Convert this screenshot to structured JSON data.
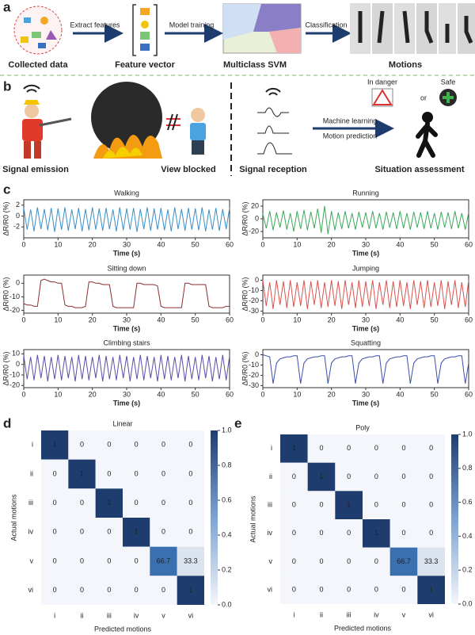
{
  "panel_a": {
    "label": "a",
    "captions": [
      "Collected data",
      "Feature vector",
      "Multiclass SVM",
      "Motions"
    ],
    "arrows": [
      "Extract features",
      "Model training",
      "Classification"
    ]
  },
  "panel_b": {
    "label": "b",
    "captions": [
      "Signal emission",
      "View blocked",
      "Signal reception",
      "Situation assessment"
    ],
    "arrow_top": "Machine learning",
    "arrow_bottom": "Motion prediction",
    "states": [
      "In danger",
      "or",
      "Safe"
    ]
  },
  "panel_labels": [
    "c",
    "d",
    "e"
  ],
  "chart_data": [
    {
      "type": "line",
      "title": "Walking",
      "xlabel": "Time (s)",
      "ylabel": "ΔR/R0 (%)",
      "color": "#3a8fc8",
      "xlim": [
        0,
        60
      ],
      "xticks": [
        0,
        10,
        20,
        30,
        40,
        50,
        60
      ],
      "ylim": [
        -4,
        3
      ],
      "yticks": [
        -2,
        0,
        2
      ],
      "x": [
        0,
        1,
        2,
        3,
        4,
        5,
        6,
        7,
        8,
        9,
        10,
        11,
        12,
        13,
        14,
        15,
        16,
        17,
        18,
        19,
        20,
        21,
        22,
        23,
        24,
        25,
        26,
        27,
        28,
        29,
        30,
        31,
        32,
        33,
        34,
        35,
        36,
        37,
        38,
        39,
        40,
        41,
        42,
        43,
        44,
        45,
        46,
        47,
        48,
        49,
        50,
        51,
        52,
        53,
        54,
        55,
        56,
        57,
        58,
        59,
        60
      ],
      "values": [
        1.5,
        -2.5,
        1.2,
        -2.8,
        1.6,
        -2.4,
        1.3,
        -2.6,
        1.5,
        -2.9,
        1.4,
        -2.5,
        1.6,
        -2.7,
        1.2,
        -2.4,
        1.5,
        -2.8,
        1.3,
        -2.6,
        1.6,
        -2.5,
        1.4,
        -2.7,
        1.5,
        -2.4,
        1.2,
        -2.8,
        1.6,
        -2.6,
        1.4,
        -2.5,
        1.5,
        -2.9,
        1.3,
        -2.4,
        1.6,
        -2.7,
        1.4,
        -2.5,
        1.5,
        -2.6,
        1.2,
        -2.8,
        1.6,
        -2.4,
        1.3,
        -2.7,
        1.5,
        -2.5,
        1.4,
        -2.6,
        1.6,
        -2.8,
        1.2,
        -2.5,
        1.5,
        -2.7,
        1.3,
        -2.4,
        1.5
      ]
    },
    {
      "type": "line",
      "title": "Running",
      "xlabel": "Time (s)",
      "ylabel": "ΔR/R0 (%)",
      "color": "#3aa85a",
      "xlim": [
        0,
        60
      ],
      "xticks": [
        0,
        10,
        20,
        30,
        40,
        50,
        60
      ],
      "ylim": [
        -30,
        30
      ],
      "yticks": [
        -20,
        0,
        20
      ],
      "x": [
        0,
        1,
        2,
        3,
        4,
        5,
        6,
        7,
        8,
        9,
        10,
        11,
        12,
        13,
        14,
        15,
        16,
        17,
        18,
        19,
        20,
        21,
        22,
        23,
        24,
        25,
        26,
        27,
        28,
        29,
        30,
        31,
        32,
        33,
        34,
        35,
        36,
        37,
        38,
        39,
        40,
        41,
        42,
        43,
        44,
        45,
        46,
        47,
        48,
        49,
        50,
        51,
        52,
        53,
        54,
        55,
        56,
        57,
        58,
        59,
        60
      ],
      "values": [
        8,
        -15,
        12,
        -18,
        10,
        -14,
        13,
        -17,
        9,
        -20,
        12,
        -16,
        14,
        -18,
        11,
        -15,
        16,
        -22,
        20,
        -24,
        12,
        -18,
        10,
        -16,
        12,
        -15,
        9,
        -17,
        11,
        -14,
        10,
        -16,
        12,
        -15,
        9,
        -17,
        11,
        -14,
        10,
        -16,
        12,
        -15,
        9,
        -17,
        11,
        -14,
        10,
        -16,
        12,
        -15,
        9,
        -17,
        11,
        -14,
        10,
        -16,
        12,
        -15,
        9,
        -17,
        10
      ]
    },
    {
      "type": "line",
      "title": "Sitting down",
      "xlabel": "Time (s)",
      "ylabel": "ΔR/R0 (%)",
      "color": "#8b2e2e",
      "xlim": [
        0,
        60
      ],
      "xticks": [
        0,
        10,
        20,
        30,
        40,
        50,
        60
      ],
      "ylim": [
        -22,
        6
      ],
      "yticks": [
        -20,
        -10,
        0
      ],
      "x": [
        0,
        1,
        2,
        3,
        4,
        5,
        6,
        7,
        8,
        9,
        10,
        11,
        12,
        13,
        14,
        15,
        16,
        17,
        18,
        19,
        20,
        21,
        22,
        23,
        24,
        25,
        26,
        27,
        28,
        29,
        30,
        31,
        32,
        33,
        34,
        35,
        36,
        37,
        38,
        39,
        40,
        41,
        42,
        43,
        44,
        45,
        46,
        47,
        48,
        49,
        50,
        51,
        52,
        53,
        54,
        55,
        56,
        57,
        58,
        59,
        60
      ],
      "values": [
        -15,
        -16,
        -16,
        -17,
        -17,
        2,
        3,
        2,
        1,
        1,
        0,
        0,
        -16,
        -17,
        -17,
        -18,
        -18,
        -18,
        -17,
        1,
        1,
        0,
        0,
        -1,
        -1,
        -1,
        -17,
        -18,
        -18,
        -18,
        -18,
        -18,
        -18,
        0,
        0,
        -1,
        -1,
        -1,
        -1,
        -2,
        -17,
        -18,
        -18,
        -18,
        -18,
        -18,
        -18,
        0,
        0,
        -1,
        -1,
        -1,
        -1,
        -1,
        -17,
        -18,
        -18,
        -18,
        -18,
        -17,
        -17
      ]
    },
    {
      "type": "line",
      "title": "Jumping",
      "xlabel": "Time (s)",
      "ylabel": "ΔR/R0 (%)",
      "color": "#d9534f",
      "xlim": [
        0,
        60
      ],
      "xticks": [
        0,
        10,
        20,
        30,
        40,
        50,
        60
      ],
      "ylim": [
        -32,
        5
      ],
      "yticks": [
        -30,
        -20,
        -10,
        0
      ],
      "x": [
        0,
        1,
        2,
        3,
        4,
        5,
        6,
        7,
        8,
        9,
        10,
        11,
        12,
        13,
        14,
        15,
        16,
        17,
        18,
        19,
        20,
        21,
        22,
        23,
        24,
        25,
        26,
        27,
        28,
        29,
        30,
        31,
        32,
        33,
        34,
        35,
        36,
        37,
        38,
        39,
        40,
        41,
        42,
        43,
        44,
        45,
        46,
        47,
        48,
        49,
        50,
        51,
        52,
        53,
        54,
        55,
        56,
        57,
        58,
        59,
        60
      ],
      "values": [
        0,
        -25,
        -2,
        -28,
        0,
        -24,
        -1,
        -27,
        0,
        -26,
        -2,
        -25,
        0,
        -28,
        -1,
        -24,
        0,
        -27,
        -2,
        -26,
        0,
        -25,
        -1,
        -28,
        0,
        -24,
        -2,
        -27,
        0,
        -26,
        -1,
        -25,
        0,
        -28,
        -2,
        -24,
        0,
        -27,
        -1,
        -26,
        0,
        -25,
        -2,
        -28,
        0,
        -24,
        -1,
        -27,
        0,
        -26,
        -2,
        -25,
        0,
        -28,
        -1,
        -24,
        0,
        -27,
        -2,
        -26,
        0
      ]
    },
    {
      "type": "line",
      "title": "Climbing stairs",
      "xlabel": "Time (s)",
      "ylabel": "ΔR/R0 (%)",
      "color": "#5a4fa8",
      "xlim": [
        0,
        60
      ],
      "xticks": [
        0,
        10,
        20,
        30,
        40,
        50,
        60
      ],
      "ylim": [
        -22,
        14
      ],
      "yticks": [
        -20,
        -10,
        0,
        10
      ],
      "x": [
        0,
        1,
        2,
        3,
        4,
        5,
        6,
        7,
        8,
        9,
        10,
        11,
        12,
        13,
        14,
        15,
        16,
        17,
        18,
        19,
        20,
        21,
        22,
        23,
        24,
        25,
        26,
        27,
        28,
        29,
        30,
        31,
        32,
        33,
        34,
        35,
        36,
        37,
        38,
        39,
        40,
        41,
        42,
        43,
        44,
        45,
        46,
        47,
        48,
        49,
        50,
        51,
        52,
        53,
        54,
        55,
        56,
        57,
        58,
        59,
        60
      ],
      "values": [
        8,
        -14,
        7,
        -15,
        9,
        -13,
        8,
        -16,
        7,
        -14,
        9,
        -15,
        8,
        -13,
        7,
        -16,
        9,
        -14,
        8,
        -15,
        7,
        -13,
        9,
        -16,
        8,
        -14,
        7,
        -15,
        9,
        -13,
        8,
        -16,
        7,
        -14,
        9,
        -15,
        8,
        -13,
        7,
        -16,
        9,
        -14,
        8,
        -15,
        7,
        -13,
        9,
        -16,
        8,
        -14,
        7,
        -15,
        9,
        -13,
        8,
        -16,
        7,
        -14,
        9,
        -15,
        8
      ]
    },
    {
      "type": "line",
      "title": "Squatting",
      "xlabel": "Time (s)",
      "ylabel": "ΔR/R0 (%)",
      "color": "#3b4fa8",
      "xlim": [
        0,
        60
      ],
      "xticks": [
        0,
        10,
        20,
        30,
        40,
        50,
        60
      ],
      "ylim": [
        -32,
        5
      ],
      "yticks": [
        -30,
        -20,
        -10,
        0
      ],
      "x": [
        0,
        1,
        2,
        3,
        4,
        5,
        6,
        7,
        8,
        9,
        10,
        11,
        12,
        13,
        14,
        15,
        16,
        17,
        18,
        19,
        20,
        21,
        22,
        23,
        24,
        25,
        26,
        27,
        28,
        29,
        30,
        31,
        32,
        33,
        34,
        35,
        36,
        37,
        38,
        39,
        40,
        41,
        42,
        43,
        44,
        45,
        46,
        47,
        48,
        49,
        50,
        51,
        52,
        53,
        54,
        55,
        56,
        57,
        58,
        59,
        60
      ],
      "values": [
        0,
        -1,
        -2,
        -28,
        -8,
        -4,
        -3,
        -2,
        -2,
        -1,
        -1,
        -28,
        -8,
        -4,
        -3,
        -2,
        -2,
        -1,
        -1,
        -28,
        -8,
        -4,
        -3,
        -2,
        -2,
        -1,
        -1,
        -28,
        -8,
        -4,
        -3,
        -2,
        -2,
        -1,
        -1,
        -28,
        -8,
        -4,
        -3,
        -2,
        -2,
        -1,
        -1,
        -28,
        -8,
        -4,
        -3,
        -2,
        -2,
        -1,
        -1,
        -28,
        -8,
        -4,
        -3,
        -2,
        -2,
        -1,
        -1,
        -28,
        -8
      ]
    },
    {
      "type": "heatmap",
      "title": "Linear",
      "xlabel": "Predicted motions",
      "ylabel": "Actual motions",
      "categories": [
        "i",
        "ii",
        "iii",
        "iv",
        "v",
        "vi"
      ],
      "rows": [
        "i",
        "ii",
        "iii",
        "iv",
        "v",
        "vi"
      ],
      "values": [
        [
          1,
          0,
          0,
          0,
          0,
          0
        ],
        [
          0,
          1,
          0,
          0,
          0,
          0
        ],
        [
          0,
          0,
          1,
          0,
          0,
          0
        ],
        [
          0,
          0,
          0,
          1,
          0,
          0
        ],
        [
          0,
          0,
          0,
          0,
          66.7,
          33.3
        ],
        [
          0,
          0,
          0,
          0,
          0,
          1
        ]
      ],
      "cell_colors": [
        [
          "#1e3d6e",
          "#f4f6fb",
          "#f4f6fb",
          "#f4f6fb",
          "#f4f6fb",
          "#f4f6fb"
        ],
        [
          "#f4f6fb",
          "#1e3d6e",
          "#f4f6fb",
          "#f4f6fb",
          "#f4f6fb",
          "#f4f6fb"
        ],
        [
          "#f4f6fb",
          "#f4f6fb",
          "#1e3d6e",
          "#f4f6fb",
          "#f4f6fb",
          "#f4f6fb"
        ],
        [
          "#f4f6fb",
          "#f4f6fb",
          "#f4f6fb",
          "#1e3d6e",
          "#f4f6fb",
          "#f4f6fb"
        ],
        [
          "#f4f6fb",
          "#f4f6fb",
          "#f4f6fb",
          "#f4f6fb",
          "#3a6fb0",
          "#dbe3ef"
        ],
        [
          "#f4f6fb",
          "#f4f6fb",
          "#f4f6fb",
          "#f4f6fb",
          "#f4f6fb",
          "#1e3d6e"
        ]
      ],
      "colorbar_lim": [
        0,
        1
      ],
      "colorbar_ticks": [
        {
          "value": 0,
          "label": "0.0"
        },
        0.2,
        0.4,
        0.6,
        0.8,
        {
          "value": 1,
          "label": "1.0"
        }
      ]
    },
    {
      "type": "heatmap",
      "title": "Poly",
      "xlabel": "Predicted motions",
      "ylabel": "Actual motions",
      "categories": [
        "i",
        "ii",
        "iii",
        "iv",
        "v",
        "vi"
      ],
      "rows": [
        "i",
        "ii",
        "iii",
        "iv",
        "v",
        "vi"
      ],
      "values": [
        [
          1,
          0,
          0,
          0,
          0,
          0
        ],
        [
          0,
          1,
          0,
          0,
          0,
          0
        ],
        [
          0,
          0,
          1,
          0,
          0,
          0
        ],
        [
          0,
          0,
          0,
          1,
          0,
          0
        ],
        [
          0,
          0,
          0,
          0,
          66.7,
          33.3
        ],
        [
          0,
          0,
          0,
          0,
          0,
          1
        ]
      ],
      "cell_colors": [
        [
          "#1e3d6e",
          "#f4f6fb",
          "#f4f6fb",
          "#f4f6fb",
          "#f4f6fb",
          "#f4f6fb"
        ],
        [
          "#f4f6fb",
          "#1e3d6e",
          "#f4f6fb",
          "#f4f6fb",
          "#f4f6fb",
          "#f4f6fb"
        ],
        [
          "#f4f6fb",
          "#f4f6fb",
          "#1e3d6e",
          "#f4f6fb",
          "#f4f6fb",
          "#f4f6fb"
        ],
        [
          "#f4f6fb",
          "#f4f6fb",
          "#f4f6fb",
          "#1e3d6e",
          "#f4f6fb",
          "#f4f6fb"
        ],
        [
          "#f4f6fb",
          "#f4f6fb",
          "#f4f6fb",
          "#f4f6fb",
          "#3a6fb0",
          "#dbe3ef"
        ],
        [
          "#f4f6fb",
          "#f4f6fb",
          "#f4f6fb",
          "#f4f6fb",
          "#f4f6fb",
          "#1e3d6e"
        ]
      ],
      "colorbar_lim": [
        0,
        1
      ],
      "colorbar_ticks": [
        {
          "value": 0,
          "label": "0.0"
        },
        0.2,
        0.4,
        0.6,
        0.8,
        {
          "value": 1,
          "label": "1.0"
        }
      ]
    }
  ]
}
